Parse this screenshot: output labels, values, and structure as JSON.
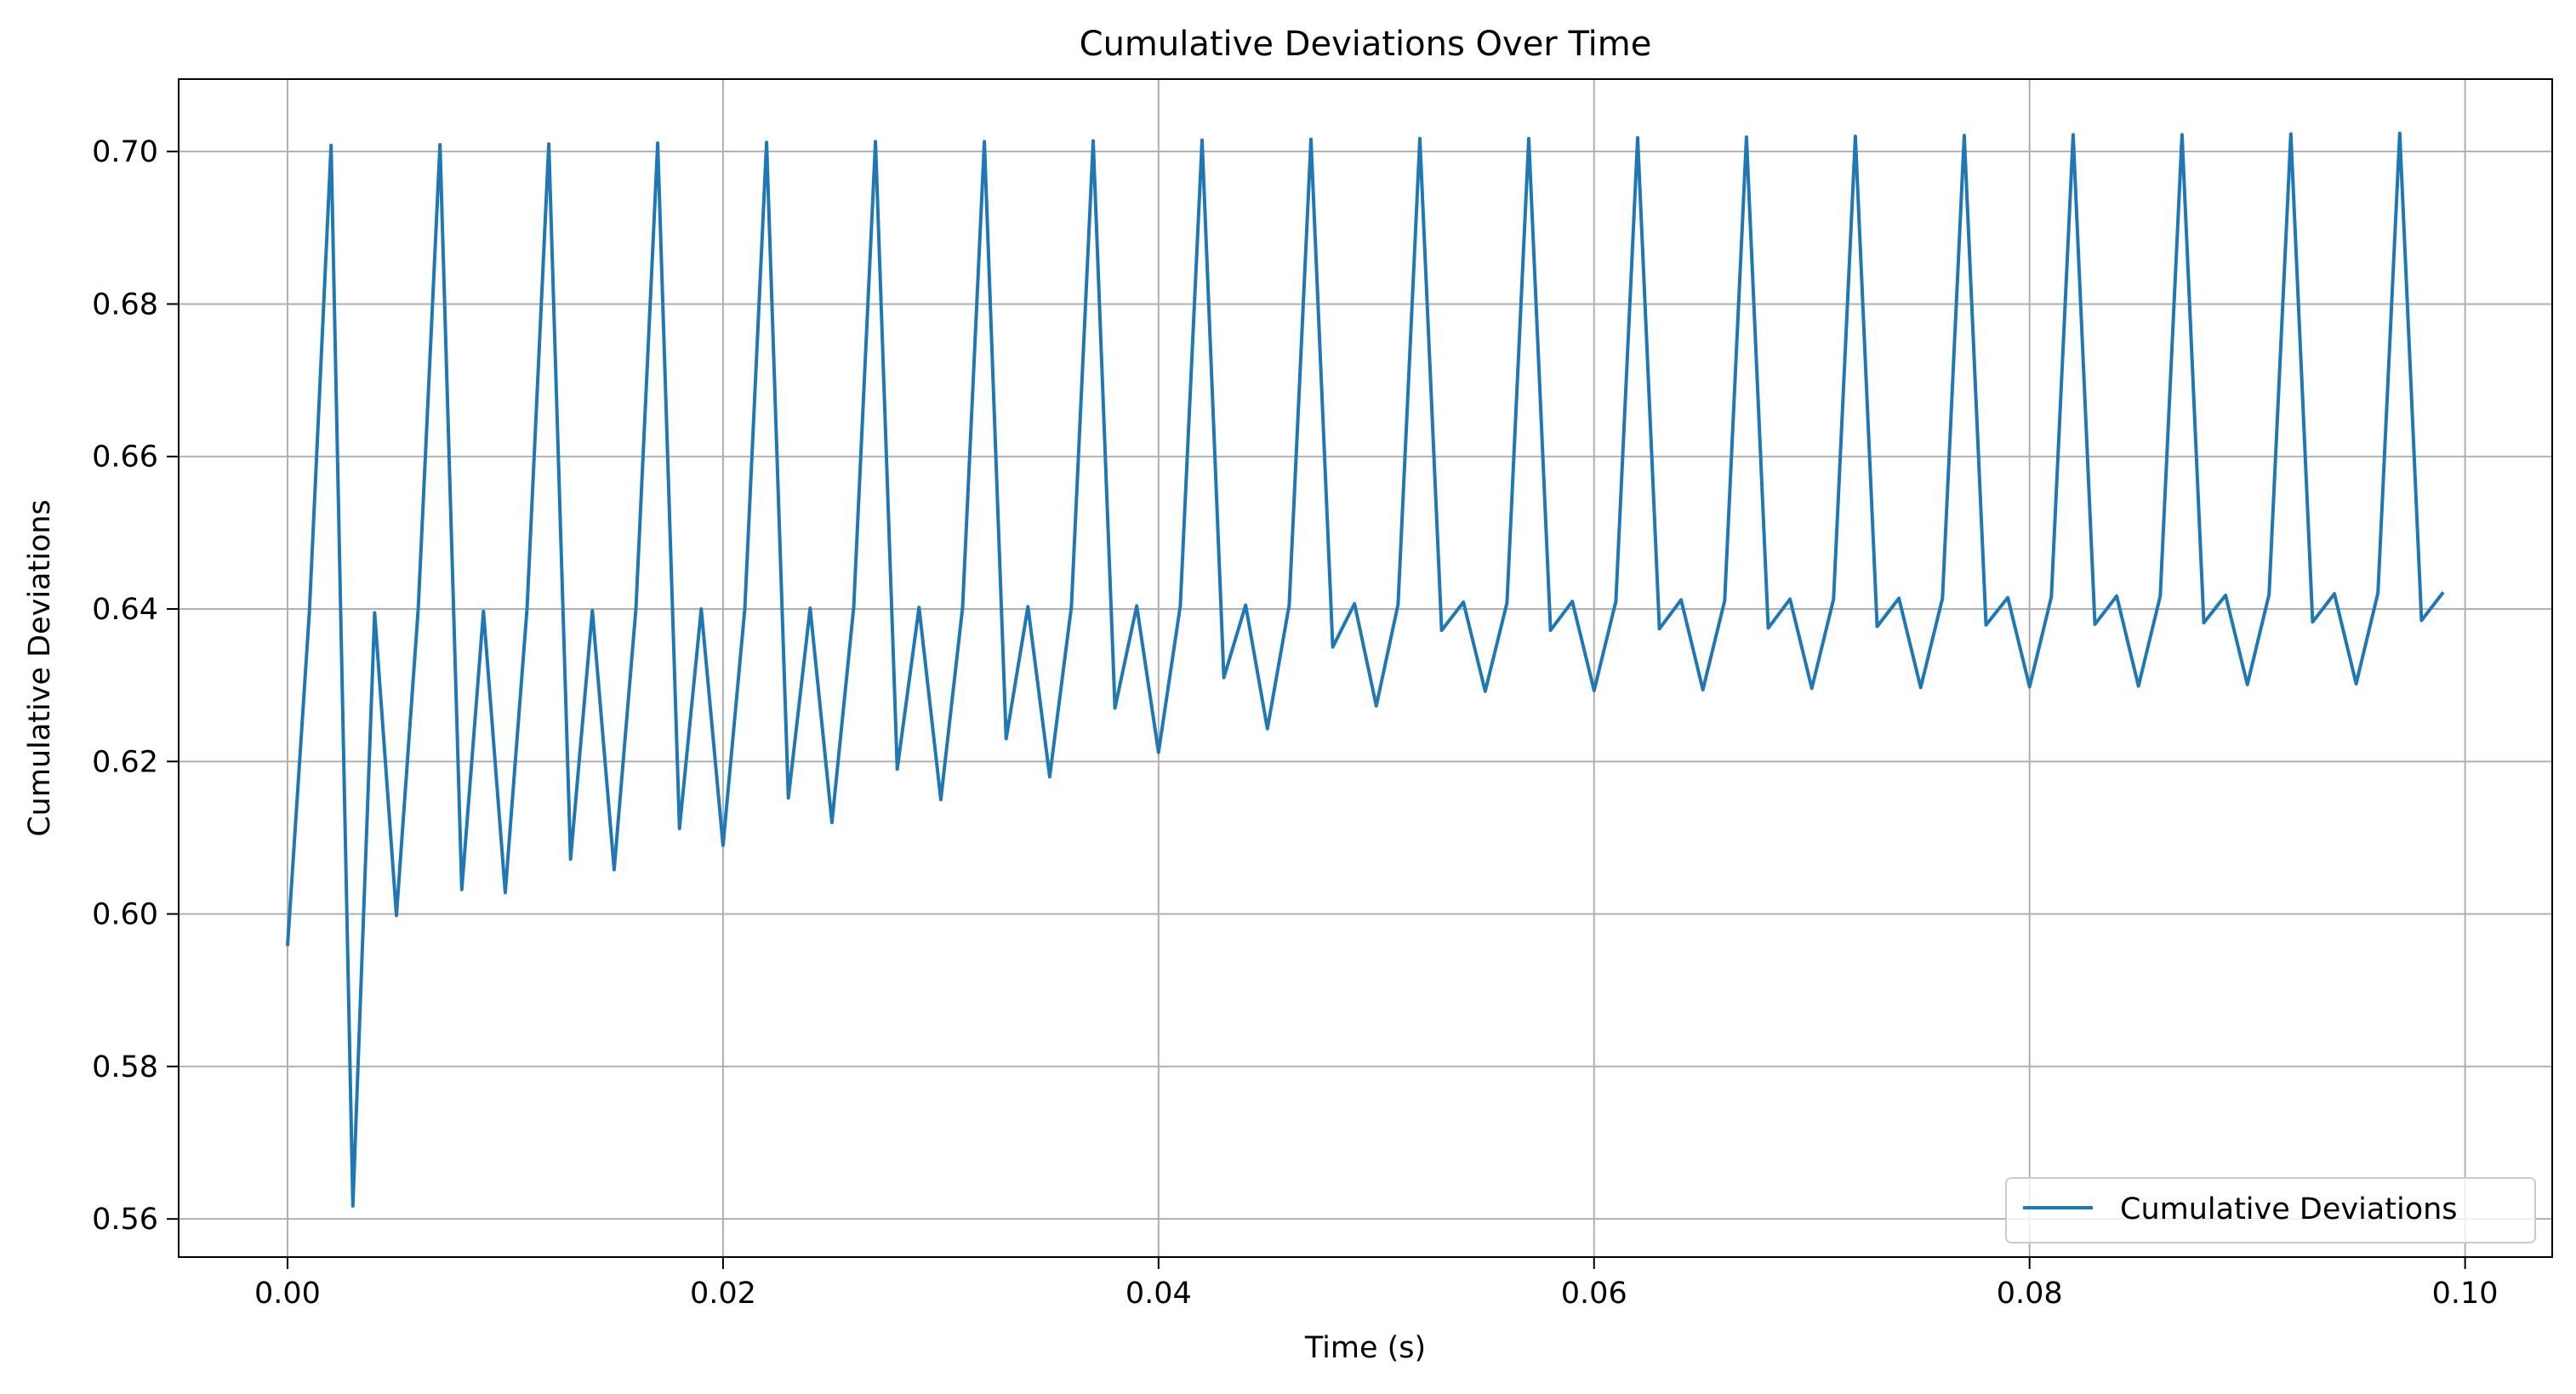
{
  "chart_data": {
    "type": "line",
    "title": "Cumulative Deviations Over Time",
    "xlabel": "Time (s)",
    "ylabel": "Cumulative Deviations",
    "xlim": [
      -0.005,
      0.104
    ],
    "ylim": [
      0.555,
      0.7095
    ],
    "xticks": [
      0.0,
      0.02,
      0.04,
      0.06,
      0.08,
      0.1
    ],
    "xtick_labels": [
      "0.00",
      "0.02",
      "0.04",
      "0.06",
      "0.08",
      "0.10"
    ],
    "yticks": [
      0.56,
      0.58,
      0.6,
      0.62,
      0.64,
      0.66,
      0.68,
      0.7
    ],
    "ytick_labels": [
      "0.56",
      "0.58",
      "0.60",
      "0.62",
      "0.64",
      "0.66",
      "0.68",
      "0.70"
    ],
    "grid": true,
    "legend_position": "lower-right",
    "series": [
      {
        "name": "Cumulative Deviations",
        "color": "#1f77b4",
        "x": [
          0.0,
          0.001,
          0.002,
          0.003,
          0.004,
          0.005,
          0.006,
          0.007,
          0.008,
          0.009,
          0.01,
          0.011,
          0.012,
          0.013,
          0.014,
          0.015,
          0.016,
          0.017,
          0.018,
          0.019,
          0.02,
          0.021,
          0.022,
          0.023,
          0.024,
          0.025,
          0.026,
          0.027,
          0.028,
          0.029,
          0.03,
          0.031,
          0.032,
          0.033,
          0.034,
          0.035,
          0.036,
          0.037,
          0.038,
          0.039,
          0.04,
          0.041,
          0.042,
          0.043,
          0.044,
          0.045,
          0.046,
          0.047,
          0.048,
          0.049,
          0.05,
          0.051,
          0.052,
          0.053,
          0.054,
          0.055,
          0.056,
          0.057,
          0.058,
          0.059,
          0.06,
          0.061,
          0.062,
          0.063,
          0.064,
          0.065,
          0.066,
          0.067,
          0.068,
          0.069,
          0.07,
          0.071,
          0.072,
          0.073,
          0.074,
          0.075,
          0.076,
          0.077,
          0.078,
          0.079,
          0.08,
          0.081,
          0.082,
          0.083,
          0.084,
          0.085,
          0.086,
          0.087,
          0.088,
          0.089,
          0.09,
          0.091,
          0.092,
          0.093,
          0.094,
          0.095,
          0.096,
          0.097,
          0.098,
          0.099
        ],
        "y": [
          0.5958,
          0.6395,
          0.7008,
          0.5617,
          0.6395,
          0.5998,
          0.64,
          0.7009,
          0.6032,
          0.6397,
          0.6028,
          0.64,
          0.701,
          0.6072,
          0.6398,
          0.6058,
          0.64,
          0.7011,
          0.6112,
          0.64,
          0.609,
          0.64,
          0.7012,
          0.6152,
          0.6401,
          0.612,
          0.6402,
          0.7013,
          0.619,
          0.6402,
          0.615,
          0.6402,
          0.7013,
          0.623,
          0.6403,
          0.618,
          0.6403,
          0.7014,
          0.627,
          0.6404,
          0.6212,
          0.6404,
          0.7015,
          0.631,
          0.6405,
          0.6243,
          0.6405,
          0.7016,
          0.635,
          0.6407,
          0.6273,
          0.6406,
          0.7017,
          0.6372,
          0.6409,
          0.6292,
          0.6408,
          0.7017,
          0.6372,
          0.641,
          0.6293,
          0.641,
          0.7018,
          0.6374,
          0.6412,
          0.6294,
          0.6411,
          0.7019,
          0.6375,
          0.6413,
          0.6296,
          0.6413,
          0.702,
          0.6377,
          0.6414,
          0.6297,
          0.6414,
          0.7021,
          0.6379,
          0.6415,
          0.6298,
          0.6416,
          0.7022,
          0.638,
          0.6417,
          0.6299,
          0.6417,
          0.7022,
          0.6382,
          0.6418,
          0.6301,
          0.6419,
          0.7023,
          0.6383,
          0.642,
          0.6302,
          0.6421,
          0.7024,
          0.6385,
          0.6422
        ]
      }
    ]
  }
}
